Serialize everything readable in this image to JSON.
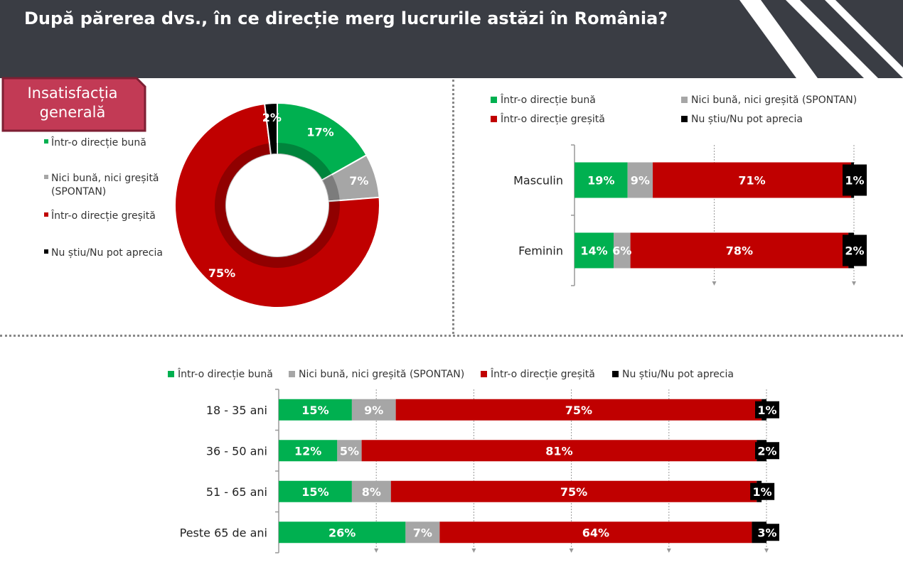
{
  "title": "După părerea dvs., în ce direcție merg lucrurile astăzi în România?",
  "badge": {
    "line1": "Insatisfacția",
    "line2": "generală"
  },
  "colors": {
    "good": "#00b050",
    "neutral": "#a6a6a6",
    "bad": "#c00000",
    "dk": "#000000",
    "header": "#3a3d44"
  },
  "legend": {
    "good": "Într-o direcție bună",
    "neutral": "Nici bună, nici greșită (SPONTAN)",
    "neutral_line1": "Nici bună, nici greșită",
    "neutral_line2": "(SPONTAN)",
    "bad": "Într-o direcție greșită",
    "dk": "Nu știu/Nu pot aprecia"
  },
  "chart_data": [
    {
      "type": "pie",
      "variant": "donut",
      "labels": [
        "Într-o direcție bună",
        "Nici bună, nici greșită (SPONTAN)",
        "Într-o direcție greșită",
        "Nu știu/Nu pot aprecia"
      ],
      "values": [
        17,
        7,
        75,
        2
      ],
      "value_labels": [
        "17%",
        "7%",
        "75%",
        "2%"
      ],
      "colors": [
        "#00b050",
        "#a6a6a6",
        "#c00000",
        "#000000"
      ],
      "legend_position": "left"
    },
    {
      "type": "bar",
      "orientation": "horizontal",
      "stacked": true,
      "categories": [
        "Masculin",
        "Feminin"
      ],
      "series": [
        {
          "name": "Într-o direcție bună",
          "values": [
            19,
            14
          ],
          "labels": [
            "19%",
            "14%"
          ]
        },
        {
          "name": "Nici bună, nici greșită (SPONTAN)",
          "values": [
            9,
            6
          ],
          "labels": [
            "9%",
            "6%"
          ]
        },
        {
          "name": "Într-o direcție greșită",
          "values": [
            71,
            78
          ],
          "labels": [
            "71%",
            "78%"
          ]
        },
        {
          "name": "Nu știu/Nu pot aprecia",
          "values": [
            1,
            2
          ],
          "labels": [
            "1%",
            "2%"
          ]
        }
      ],
      "xlim": [
        0,
        100
      ],
      "legend_position": "top"
    },
    {
      "type": "bar",
      "orientation": "horizontal",
      "stacked": true,
      "categories": [
        "18 - 35 ani",
        "36 - 50 ani",
        "51 - 65 ani",
        "Peste 65 de ani"
      ],
      "series": [
        {
          "name": "Într-o direcție bună",
          "values": [
            15,
            12,
            15,
            26
          ],
          "labels": [
            "15%",
            "12%",
            "15%",
            "26%"
          ]
        },
        {
          "name": "Nici bună, nici greșită (SPONTAN)",
          "values": [
            9,
            5,
            8,
            7
          ],
          "labels": [
            "9%",
            "5%",
            "8%",
            "7%"
          ]
        },
        {
          "name": "Într-o direcție greșită",
          "values": [
            75,
            81,
            75,
            64
          ],
          "labels": [
            "75%",
            "81%",
            "75%",
            "64%"
          ]
        },
        {
          "name": "Nu știu/Nu pot aprecia",
          "values": [
            1,
            2,
            1,
            3
          ],
          "labels": [
            "1%",
            "2%",
            "1%",
            "3%"
          ]
        }
      ],
      "xlim": [
        0,
        100
      ],
      "legend_position": "top"
    }
  ]
}
